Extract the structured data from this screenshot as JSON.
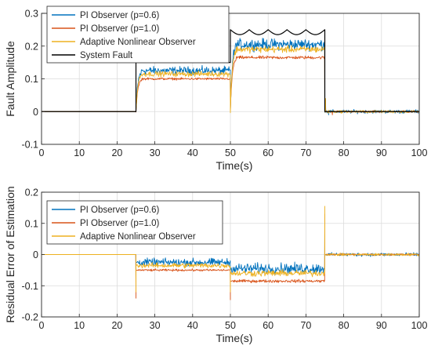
{
  "chart_data": [
    {
      "type": "line",
      "ylabel": "Fault Amplitude",
      "xlabel": "Time(s)",
      "xlim": [
        0,
        100
      ],
      "ylim": [
        -0.1,
        0.3
      ],
      "xticks": [
        "0",
        "10",
        "20",
        "30",
        "40",
        "50",
        "60",
        "70",
        "80",
        "90",
        "100"
      ],
      "yticks": [
        "-0.1",
        "0",
        "0.1",
        "0.2",
        "0.3"
      ],
      "grid": true,
      "legend_position": "top-left",
      "series": [
        {
          "name": "PI Observer (p=0.6)",
          "color": "#0072BD",
          "segments": [
            {
              "x": [
                0,
                25
              ],
              "level": 0,
              "noise": 0
            },
            {
              "x": [
                25,
                50
              ],
              "level": 0.125,
              "noise": 0.018
            },
            {
              "x": [
                50,
                75
              ],
              "level": 0.205,
              "noise": 0.025
            },
            {
              "x": [
                75,
                100
              ],
              "level": 0.0,
              "noise": 0.008
            }
          ],
          "spikes": [
            {
              "x": 75.2,
              "y": 0.03
            },
            {
              "x": 76,
              "y": -0.01
            }
          ]
        },
        {
          "name": "PI Observer (p=1.0)",
          "color": "#D95319",
          "segments": [
            {
              "x": [
                0,
                25
              ],
              "level": 0,
              "noise": 0
            },
            {
              "x": [
                25,
                50
              ],
              "level": 0.1,
              "noise": 0.005
            },
            {
              "x": [
                50,
                75
              ],
              "level": 0.165,
              "noise": 0.007
            },
            {
              "x": [
                75,
                100
              ],
              "level": 0.0,
              "noise": 0.004
            }
          ],
          "spikes": [
            {
              "x": 75.2,
              "y": 0.035
            },
            {
              "x": 77,
              "y": -0.01
            }
          ]
        },
        {
          "name": "Adaptive Nonlinear Observer",
          "color": "#EDB120",
          "segments": [
            {
              "x": [
                0,
                25
              ],
              "level": 0,
              "noise": 0
            },
            {
              "x": [
                25,
                50
              ],
              "level": 0.115,
              "noise": 0.012
            },
            {
              "x": [
                50,
                75
              ],
              "level": 0.19,
              "noise": 0.015
            },
            {
              "x": [
                75,
                100
              ],
              "level": 0.0,
              "noise": 0.006
            }
          ],
          "spikes": [
            {
              "x": 75.2,
              "y": 0.04
            },
            {
              "x": 76,
              "y": -0.005
            }
          ]
        },
        {
          "name": "System Fault",
          "color": "#000000",
          "piecewise": [
            {
              "x": [
                0,
                25
              ],
              "value": 0
            },
            {
              "x": [
                25,
                50
              ],
              "value": 0.15
            },
            {
              "x": [
                50,
                75
              ],
              "value": "0.25 - 0.015*|sin(pi*(t-50)/5)|"
            },
            {
              "x": [
                75,
                100
              ],
              "value": 0
            }
          ]
        }
      ]
    },
    {
      "type": "line",
      "ylabel": "Residual Error of Estimation",
      "xlabel": "Time(s)",
      "xlim": [
        0,
        100
      ],
      "ylim": [
        -0.2,
        0.2
      ],
      "xticks": [
        "0",
        "10",
        "20",
        "30",
        "40",
        "50",
        "60",
        "70",
        "80",
        "90",
        "100"
      ],
      "yticks": [
        "-0.2",
        "-0.1",
        "0",
        "0.1",
        "0.2"
      ],
      "grid": true,
      "legend_position": "top-left",
      "series": [
        {
          "name": "PI Observer (p=0.6)",
          "color": "#0072BD",
          "segments": [
            {
              "x": [
                0,
                25
              ],
              "level": 0,
              "noise": 0
            },
            {
              "x": [
                25,
                50
              ],
              "level": -0.025,
              "noise": 0.018
            },
            {
              "x": [
                50,
                75
              ],
              "level": -0.045,
              "noise": 0.025
            },
            {
              "x": [
                75,
                100
              ],
              "level": 0.0,
              "noise": 0.008
            }
          ],
          "spikes": [
            {
              "x": 25,
              "y": -0.1
            },
            {
              "x": 50,
              "y": -0.1
            },
            {
              "x": 75,
              "y": 0.12
            }
          ]
        },
        {
          "name": "PI Observer (p=1.0)",
          "color": "#D95319",
          "segments": [
            {
              "x": [
                0,
                25
              ],
              "level": 0,
              "noise": 0
            },
            {
              "x": [
                25,
                50
              ],
              "level": -0.05,
              "noise": 0.005
            },
            {
              "x": [
                50,
                75
              ],
              "level": -0.085,
              "noise": 0.007
            },
            {
              "x": [
                75,
                100
              ],
              "level": 0.0,
              "noise": 0.004
            }
          ],
          "spikes": [
            {
              "x": 25,
              "y": -0.14
            },
            {
              "x": 50,
              "y": -0.145
            },
            {
              "x": 75,
              "y": 0.13
            }
          ]
        },
        {
          "name": "Adaptive Nonlinear Observer",
          "color": "#EDB120",
          "segments": [
            {
              "x": [
                0,
                25
              ],
              "level": 0,
              "noise": 0
            },
            {
              "x": [
                25,
                50
              ],
              "level": -0.035,
              "noise": 0.012
            },
            {
              "x": [
                50,
                75
              ],
              "level": -0.06,
              "noise": 0.015
            },
            {
              "x": [
                75,
                100
              ],
              "level": 0.0,
              "noise": 0.006
            }
          ],
          "spikes": [
            {
              "x": 25,
              "y": -0.12
            },
            {
              "x": 50,
              "y": -0.12
            },
            {
              "x": 75,
              "y": 0.155
            }
          ]
        }
      ]
    }
  ]
}
